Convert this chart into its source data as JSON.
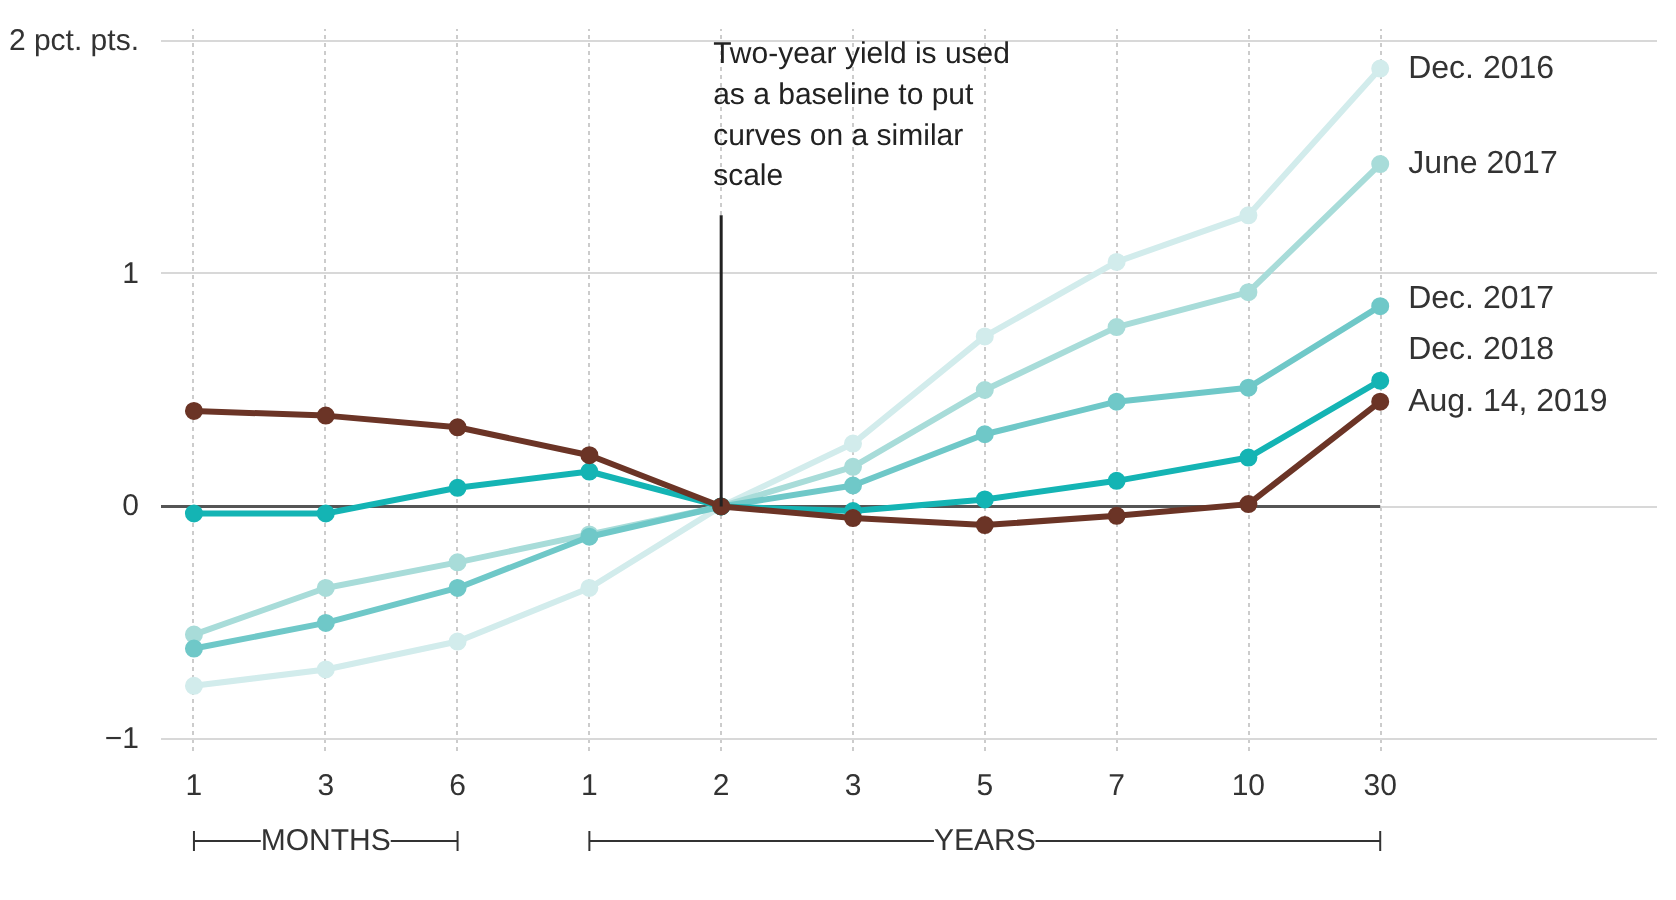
{
  "chart_data": {
    "type": "line",
    "categories": [
      "1",
      "3",
      "6",
      "1",
      "2",
      "3",
      "5",
      "7",
      "10",
      "30"
    ],
    "series": [
      {
        "name": "Dec. 2016",
        "color": "#d2ecec",
        "values": [
          -0.77,
          -0.7,
          -0.58,
          -0.35,
          0,
          0.27,
          0.73,
          1.05,
          1.25,
          1.88
        ]
      },
      {
        "name": "June  2017",
        "color": "#a8dcd9",
        "values": [
          -0.55,
          -0.35,
          -0.24,
          -0.12,
          0,
          0.17,
          0.5,
          0.77,
          0.92,
          1.47
        ]
      },
      {
        "name": "Dec. 2017",
        "color": "#6fc8c8",
        "values": [
          -0.61,
          -0.5,
          -0.35,
          -0.13,
          0,
          0.09,
          0.31,
          0.45,
          0.51,
          0.86
        ]
      },
      {
        "name": "Dec. 2018",
        "color": "#14b4b4",
        "values": [
          -0.03,
          -0.03,
          0.08,
          0.15,
          0,
          -0.02,
          0.03,
          0.11,
          0.21,
          0.54
        ]
      },
      {
        "name": "Aug. 14, 2019",
        "color": "#6b3426",
        "values": [
          0.41,
          0.39,
          0.34,
          0.22,
          0,
          -0.05,
          -0.08,
          -0.04,
          0.01,
          0.45
        ]
      }
    ],
    "ylim": [
      -1.05,
      2.05
    ],
    "yticks": [
      {
        "value": -1,
        "label": "−1"
      },
      0,
      1,
      {
        "value": 2,
        "label": "2 pct. pts."
      }
    ],
    "ref_lines": [
      {
        "axis": "y",
        "value": 0,
        "color": "#555555"
      }
    ],
    "annotations": [
      {
        "text": "Two-year yield is used as a baseline to put curves on a similar scale",
        "x": "2",
        "y": 0
      },
      "MONTHS",
      "YEARS"
    ],
    "grid": true,
    "marker": "circle",
    "line_style": "solid"
  }
}
